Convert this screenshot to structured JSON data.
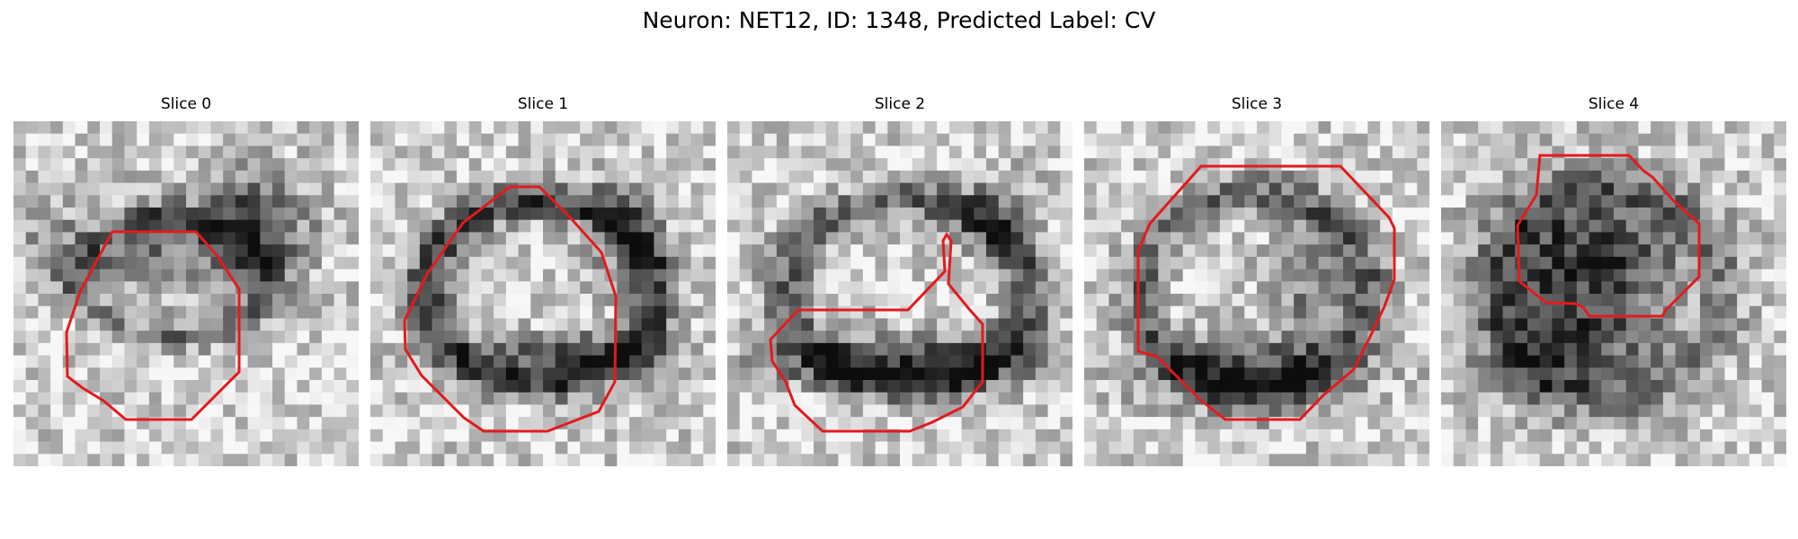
{
  "figure": {
    "title": "Neuron: NET12, ID: 1348, Predicted Label: CV"
  },
  "outline_color": "#e41a1c",
  "panels": [
    {
      "title": "Slice 0",
      "dark_blob": "ring with dark upper-right mass",
      "seed": 11
    },
    {
      "title": "Slice 1",
      "dark_blob": "ring with dark band below center",
      "seed": 23
    },
    {
      "title": "Slice 2",
      "dark_blob": "ring with dark lower band",
      "seed": 37
    },
    {
      "title": "Slice 3",
      "dark_blob": "ring with dark lower mass",
      "seed": 41
    },
    {
      "title": "Slice 4",
      "dark_blob": "dark central mass",
      "seed": 53
    }
  ]
}
